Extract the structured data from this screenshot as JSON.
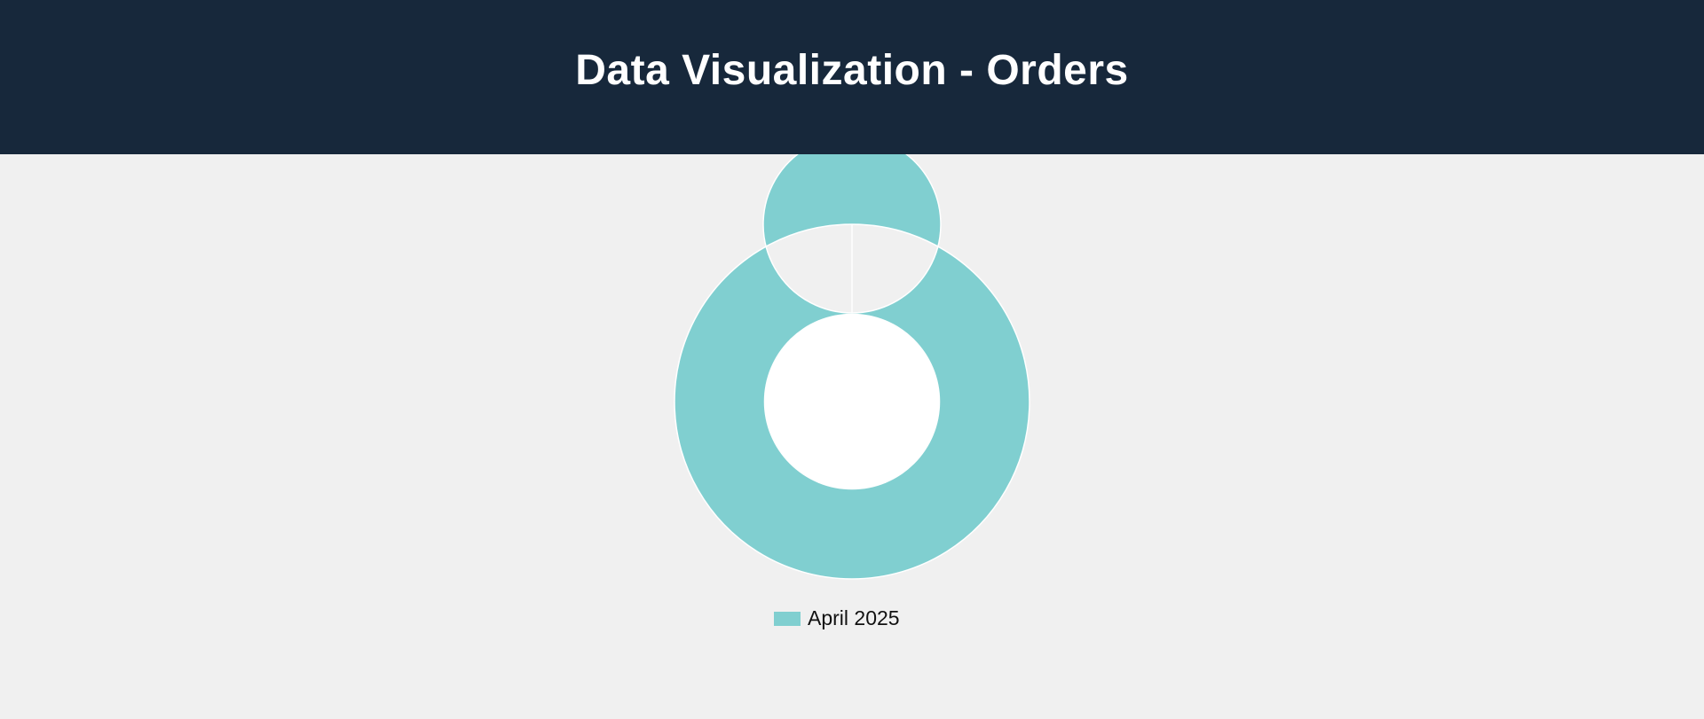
{
  "header": {
    "title": "Data Visualization - Orders"
  },
  "colors": {
    "header_bg": "#17283b",
    "page_bg": "#f0f0f0",
    "slice_fill": "#80cfd0",
    "slice_border": "#ffffff"
  },
  "chart_data": {
    "type": "doughnut",
    "title": "",
    "labels": [
      "April 2025"
    ],
    "values": [
      1
    ],
    "colors": [
      "#80cfd0"
    ],
    "legend_position": "top"
  },
  "custom_legend": {
    "items": [
      {
        "label": "April 2025",
        "color": "#80cfd0"
      }
    ]
  }
}
